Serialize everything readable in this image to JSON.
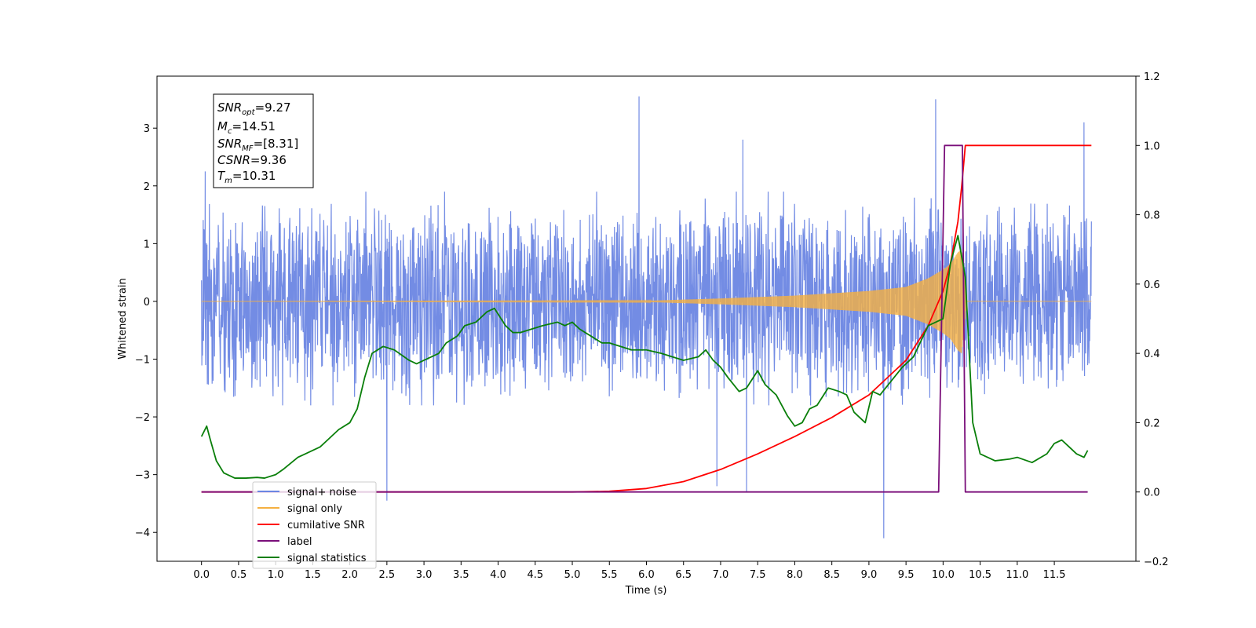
{
  "chart_data": {
    "type": "line",
    "title": "",
    "xlabel": "Time (s)",
    "ylabel": "Whitened strain",
    "xlim": [
      -0.6,
      12.6
    ],
    "ylim": [
      -4.5,
      3.9
    ],
    "y2lim": [
      -0.2,
      1.2
    ],
    "x_ticks": [
      "0.0",
      "0.5",
      "1.0",
      "1.5",
      "2.0",
      "2.5",
      "3.0",
      "3.5",
      "4.0",
      "4.5",
      "5.0",
      "5.5",
      "6.0",
      "6.5",
      "7.0",
      "7.5",
      "8.0",
      "8.5",
      "9.0",
      "9.5",
      "10.0",
      "10.5",
      "11.0",
      "11.5"
    ],
    "y_ticks": [
      "3",
      "2",
      "1",
      "0",
      "−1",
      "−2",
      "−3",
      "−4"
    ],
    "y2_ticks": [
      "1.2",
      "1.0",
      "0.8",
      "0.6",
      "0.4",
      "0.2",
      "0.0",
      "−0.2"
    ],
    "grid": false,
    "legend_position": "bottom-left",
    "stats": {
      "snr_opt": "=9.27",
      "mc": "=14.51",
      "snr_mf": "=[8.31]",
      "csnr": "=9.36",
      "tm": "=10.31"
    },
    "series": [
      {
        "name": "signal+ noise",
        "color": "#6b86e3",
        "axis": "left",
        "description_envelope": {
          "x_range": [
            0.0,
            12.0
          ],
          "typical_min": -1.8,
          "typical_max": 1.9,
          "notable_peaks": [
            [
              0.05,
              2.25
            ],
            [
              5.9,
              3.55
            ],
            [
              9.9,
              3.5
            ],
            [
              11.9,
              3.1
            ],
            [
              7.3,
              2.8
            ]
          ],
          "notable_troughs": [
            [
              2.5,
              -3.45
            ],
            [
              9.2,
              -4.1
            ],
            [
              7.35,
              -3.3
            ],
            [
              6.95,
              -3.2
            ]
          ]
        }
      },
      {
        "name": "signal only",
        "color": "#f5b041",
        "axis": "left",
        "x": [
          0.0,
          6.0,
          7.0,
          8.0,
          9.0,
          9.5,
          9.8,
          10.0,
          10.1,
          10.2,
          10.25,
          10.3,
          10.32,
          12.0
        ],
        "amplitude": [
          0.0,
          0.01,
          0.05,
          0.1,
          0.18,
          0.25,
          0.4,
          0.55,
          0.65,
          0.85,
          0.9,
          0.3,
          0.0,
          0.0
        ]
      },
      {
        "name": "cumilative SNR",
        "color": "#ff0000",
        "axis": "right",
        "x": [
          0.0,
          5.0,
          5.5,
          6.0,
          6.5,
          7.0,
          7.5,
          8.0,
          8.5,
          9.0,
          9.5,
          9.8,
          10.0,
          10.1,
          10.2,
          10.25,
          10.3,
          12.0
        ],
        "y": [
          0.0,
          0.0,
          0.002,
          0.01,
          0.03,
          0.065,
          0.11,
          0.16,
          0.215,
          0.28,
          0.38,
          0.48,
          0.58,
          0.66,
          0.78,
          0.88,
          1.0,
          1.0
        ]
      },
      {
        "name": "label",
        "color": "#7a0f7a",
        "axis": "right",
        "x": [
          0.0,
          9.94,
          10.02,
          10.26,
          10.3,
          11.95
        ],
        "y": [
          0.0,
          0.0,
          1.0,
          1.0,
          0.0,
          0.0
        ]
      },
      {
        "name": "signal statistics",
        "color": "#0a7f0a",
        "axis": "right",
        "x": [
          0.0,
          0.07,
          0.12,
          0.2,
          0.3,
          0.45,
          0.6,
          0.75,
          0.85,
          1.0,
          1.1,
          1.3,
          1.4,
          1.6,
          1.7,
          1.85,
          2.0,
          2.1,
          2.2,
          2.3,
          2.45,
          2.6,
          2.8,
          2.9,
          3.0,
          3.2,
          3.3,
          3.45,
          3.55,
          3.7,
          3.85,
          3.95,
          4.1,
          4.2,
          4.3,
          4.45,
          4.6,
          4.8,
          4.9,
          5.0,
          5.1,
          5.25,
          5.4,
          5.5,
          5.8,
          6.0,
          6.2,
          6.5,
          6.7,
          6.8,
          6.9,
          7.0,
          7.1,
          7.25,
          7.35,
          7.5,
          7.6,
          7.75,
          7.9,
          8.0,
          8.1,
          8.2,
          8.3,
          8.45,
          8.6,
          8.7,
          8.8,
          8.95,
          9.05,
          9.15,
          9.3,
          9.45,
          9.6,
          9.8,
          9.9,
          10.0,
          10.1,
          10.2,
          10.3,
          10.4,
          10.5,
          10.7,
          10.9,
          11.0,
          11.2,
          11.4,
          11.5,
          11.6,
          11.7,
          11.8,
          11.9,
          11.95
        ],
        "y": [
          0.16,
          0.19,
          0.15,
          0.09,
          0.055,
          0.04,
          0.04,
          0.042,
          0.04,
          0.05,
          0.065,
          0.1,
          0.11,
          0.13,
          0.15,
          0.18,
          0.2,
          0.24,
          0.33,
          0.4,
          0.42,
          0.41,
          0.38,
          0.37,
          0.38,
          0.4,
          0.43,
          0.45,
          0.48,
          0.49,
          0.52,
          0.53,
          0.48,
          0.46,
          0.46,
          0.47,
          0.48,
          0.49,
          0.48,
          0.49,
          0.47,
          0.45,
          0.43,
          0.43,
          0.41,
          0.41,
          0.4,
          0.38,
          0.39,
          0.41,
          0.38,
          0.36,
          0.33,
          0.29,
          0.3,
          0.35,
          0.31,
          0.28,
          0.22,
          0.19,
          0.2,
          0.24,
          0.25,
          0.3,
          0.29,
          0.28,
          0.23,
          0.2,
          0.29,
          0.28,
          0.32,
          0.36,
          0.39,
          0.48,
          0.49,
          0.5,
          0.66,
          0.74,
          0.62,
          0.2,
          0.11,
          0.09,
          0.095,
          0.1,
          0.085,
          0.11,
          0.14,
          0.15,
          0.13,
          0.11,
          0.1,
          0.12
        ]
      }
    ]
  }
}
